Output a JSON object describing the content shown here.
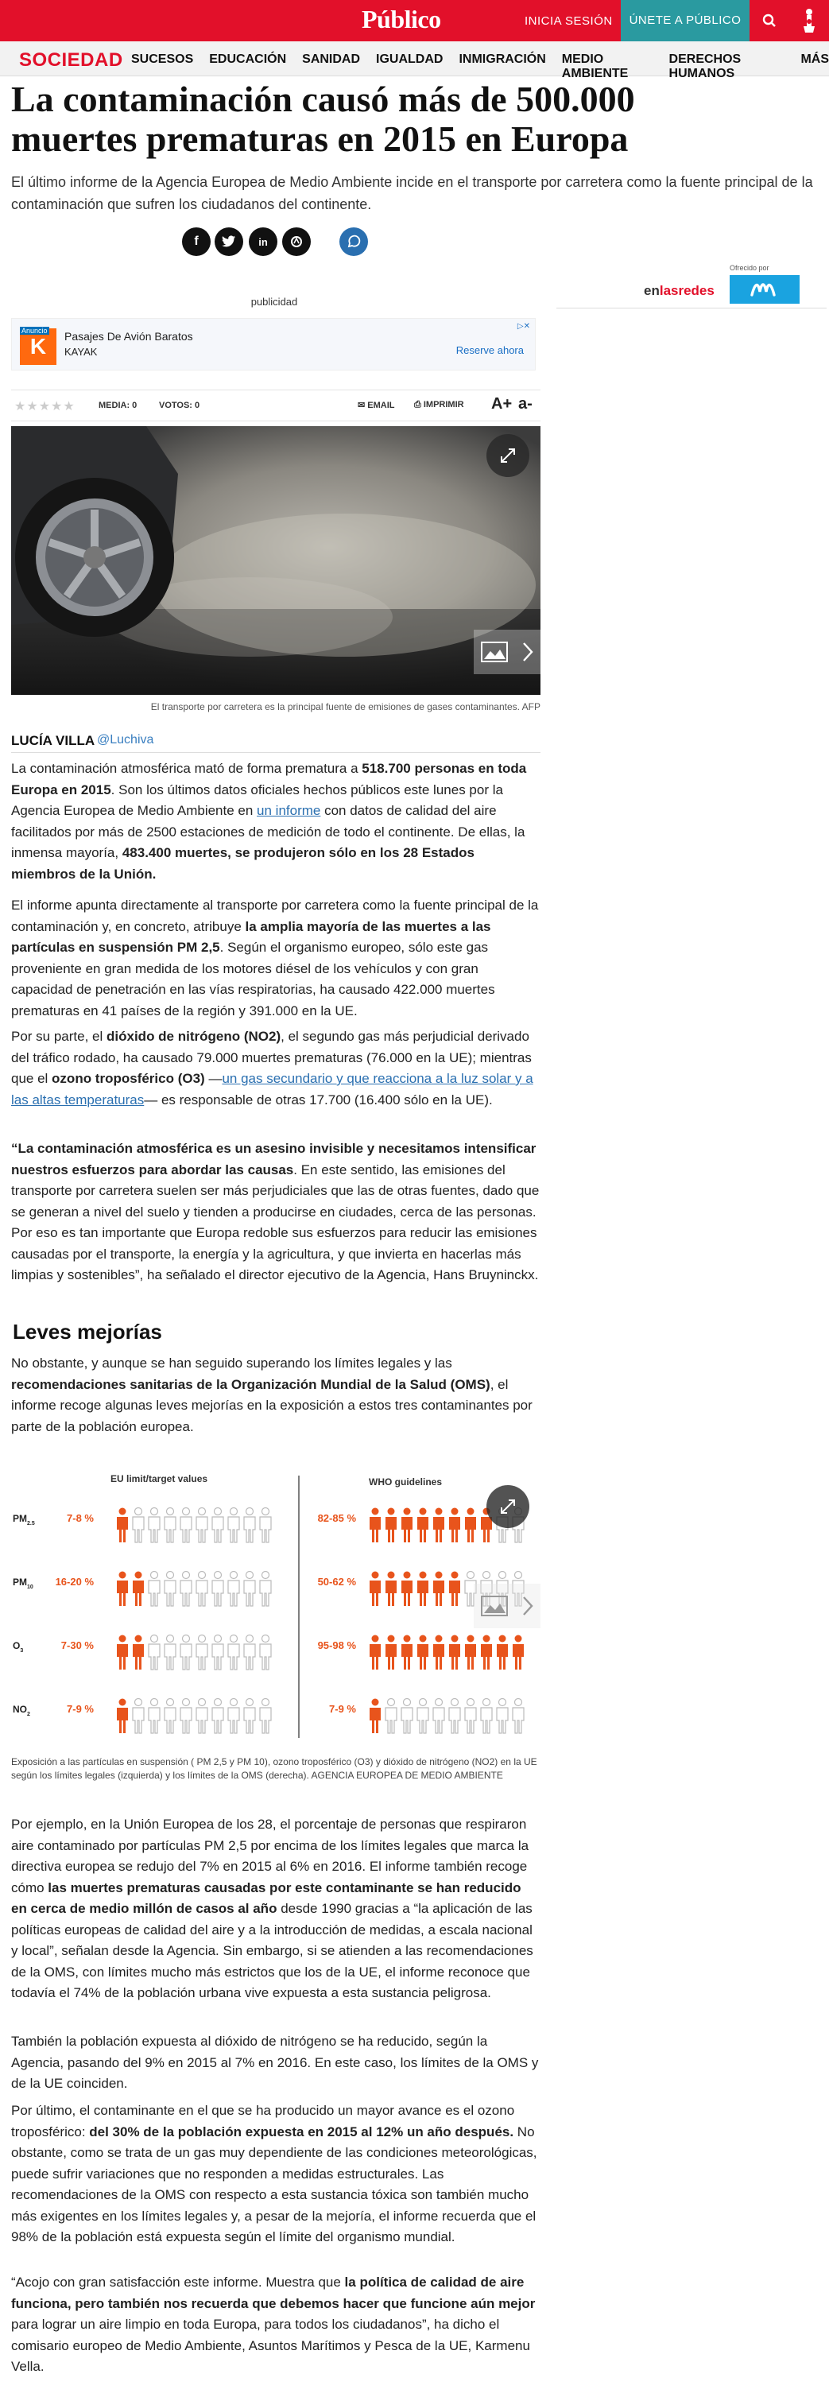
{
  "header": {
    "logo": "Público",
    "login": "INICIA SESIÓN",
    "join": "ÚNETE A PÚBLICO"
  },
  "section": {
    "name": "SOCIEDAD",
    "links": [
      "SUCESOS",
      "EDUCACIÓN",
      "SANIDAD",
      "IGUALDAD",
      "INMIGRACIÓN",
      "MEDIO AMBIENTE",
      "DERECHOS HUMANOS",
      "MÁS"
    ]
  },
  "article": {
    "title": "La contaminación causó más de 500.000 muertes prematuras en 2015 en Europa",
    "subtitle": "El último informe de la Agencia Europea de Medio Ambiente incide en el transporte por carretera como la fuente principal de la contaminación que sufren los ciudadanos del continente.",
    "author": "LUCÍA VILLA",
    "author_handle": "@Luchiva",
    "photo_caption": "El transporte por carretera es la principal fuente de emisiones de gases contaminantes. AFP",
    "subheading": "Leves mejorías"
  },
  "promo": {
    "offered_by": "Ofrecido por",
    "brand_prefix": "en",
    "brand_suffix": "lasredes"
  },
  "ad": {
    "label": "publicidad",
    "badge": "Anuncio",
    "title": "Pasajes De Avión Baratos",
    "advertiser": "KAYAK",
    "cta": "Reserve ahora"
  },
  "rating": {
    "media": "MEDIA: 0",
    "votos": "VOTOS: 0",
    "email": "EMAIL",
    "print": "IMPRIMIR",
    "font_up": "A+",
    "font_down": "a-"
  },
  "paragraphs": {
    "p1a": "La contaminación atmosférica mató de forma prematura a ",
    "p1b": "518.700 personas en toda Europa en 2015",
    "p1c": ". Son los últimos datos oficiales hechos públicos este lunes por la Agencia Europea de Medio Ambiente en ",
    "p1link": "un informe",
    "p1d": " con datos de calidad del aire facilitados por más de 2500 estaciones de medición de todo el continente. De ellas, la inmensa mayoría, ",
    "p1e": "483.400 muertes, se produjeron sólo en los 28 Estados miembros de la Unión.",
    "p2a": "El informe apunta directamente al transporte por carretera como la fuente principal de la contaminación y, en concreto, atribuye ",
    "p2b": "la amplia mayoría de las muertes a las partículas en suspensión PM 2,5",
    "p2c": ". Según el organismo europeo, sólo este gas proveniente en gran medida de los motores diésel de los vehículos y con gran capacidad de penetración en las vías respiratorias, ha causado 422.000 muertes prematuras en 41 países de la región y 391.000 en la UE.",
    "p3a": "Por su parte, el ",
    "p3b": "dióxido de nitrógeno (NO2)",
    "p3c": ", el segundo gas más perjudicial derivado del tráfico rodado, ha causado 79.000 muertes prematuras (76.000 en la UE); mientras que el ",
    "p3d": "ozono troposférico (O3)",
    "p3e": " —",
    "p3link": "un gas secundario y que reacciona a la luz solar y a las altas temperaturas",
    "p3f": "— es responsable de otras 17.700 (16.400 sólo en la UE).",
    "p4a": "“La contaminación atmosférica es un asesino invisible y necesitamos intensificar nuestros esfuerzos para abordar las causas",
    "p4b": ". En este sentido, las emisiones del transporte por carretera suelen ser más perjudiciales que las de otras fuentes, dado que se generan a nivel del suelo y tienden a producirse en ciudades, cerca de las personas. Por eso es tan importante que Europa redoble sus esfuerzos para reducir las emisiones causadas por el transporte, la energía y la agricultura, y que invierta en hacerlas más limpias y sostenibles”, ha señalado el director ejecutivo de la Agencia, Hans Bruyninckx.",
    "p5a": "No obstante, y aunque se han seguido superando los límites legales y las ",
    "p5b": "recomendaciones sanitarias de la Organización Mundial de la Salud (OMS)",
    "p5c": ", el informe recoge algunas leves mejorías en la exposición a estos tres contaminantes por parte de la población europea.",
    "p6a": "Por ejemplo, en la Unión Europea de los 28, el porcentaje de personas que respiraron aire contaminado por partículas PM 2,5 por encima de los límites legales que marca la directiva europea se redujo del 7% en 2015 al 6% en 2016. El informe también recoge cómo ",
    "p6b": "las muertes prematuras causadas por este contaminante se han reducido en cerca de medio millón de casos al año",
    "p6c": " desde 1990 gracias a “la aplicación de las políticas europeas de calidad del aire y a la introducción de medidas, a escala nacional y local”, señalan desde la Agencia. Sin embargo, si se atienden a las recomendaciones de la OMS, con límites mucho más estrictos que los de la UE, el informe reconoce que todavía el 74% de la población urbana vive expuesta a esta sustancia peligrosa.",
    "p7": "También la población expuesta al dióxido de nitrógeno se ha reducido, según la Agencia, pasando del 9% en 2015 al 7% en 2016. En este caso, los límites de la OMS y de la UE coinciden.",
    "p8a": "Por último, el contaminante en el que se ha producido un mayor avance es el ozono troposférico: ",
    "p8b": "del 30% de la población expuesta en 2015 al 12% un año después.",
    "p8c": " No obstante, como se trata de un gas muy dependiente de las condiciones meteorológicas, puede sufrir variaciones que no responden a medidas estructurales. Las recomendaciones de la OMS con respecto a esta sustancia tóxica son también mucho más exigentes en los límites legales y, a pesar de la mejoría, el informe recuerda que el 98% de la población está expuesta según el límite del organismo mundial.",
    "p9a": "“Acojo con gran satisfacción este informe. Muestra que ",
    "p9b": "la política de calidad de aire funciona, pero también nos recuerda que debemos hacer que funcione aún mejor",
    "p9c": " para lograr un aire limpio en toda Europa, para todos los ciudadanos”, ha dicho el comisario europeo de Medio Ambiente, Asuntos Marítimos y Pesca de la UE, Karmenu Vella."
  },
  "infographic": {
    "eu_header": "EU limit/target values",
    "who_header": "WHO guidelines",
    "rows": [
      {
        "pollutant": "PM",
        "sub": "2.5",
        "eu": "7-8 %",
        "eu_fraction": 0.075,
        "who": "82-85 %",
        "who_fraction": 0.835
      },
      {
        "pollutant": "PM",
        "sub": "10",
        "eu": "16-20 %",
        "eu_fraction": 0.18,
        "who": "50-62 %",
        "who_fraction": 0.56
      },
      {
        "pollutant": "O",
        "sub": "3",
        "eu": "7-30 %",
        "eu_fraction": 0.185,
        "who": "95-98 %",
        "who_fraction": 0.965
      },
      {
        "pollutant": "NO",
        "sub": "2",
        "eu": "7-9 %",
        "eu_fraction": 0.08,
        "who": "7-9 %",
        "who_fraction": 0.08
      }
    ],
    "caption": "Exposición a las partículas en suspensión ( PM 2,5 y PM 10), ozono troposférico (O3) y dióxido de nitrógeno (NO2) en la UE según los límites legales (izquierda) y los límites de la OMS (derecha). AGENCIA EUROPEA DE MEDIO AMBIENTE",
    "accent": "#e8541c",
    "grey": "#bbbbbb"
  }
}
